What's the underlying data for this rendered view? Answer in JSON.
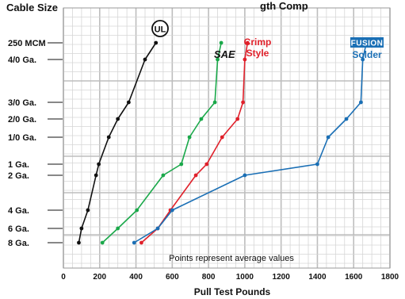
{
  "colors": {
    "ul": "#111111",
    "sae": "#1aa84a",
    "crimp": "#e0202a",
    "solder": "#1a6fb5",
    "grid_minor": "#d6d6d6",
    "grid_major": "#bdbdbd"
  },
  "chart_data": {
    "type": "line",
    "title": "Cable Size",
    "title_suffix": "gth Comp",
    "xlabel": "Pull Test Pounds",
    "ylabel": "Cable Size",
    "xlim": [
      0,
      1800
    ],
    "x_ticks": [
      0,
      200,
      400,
      600,
      800,
      1000,
      1200,
      1400,
      1600,
      1800
    ],
    "x_tick_labels": [
      "0",
      "200",
      "400",
      "600",
      "800",
      "1000",
      "1200",
      "1400",
      "1600",
      "1800"
    ],
    "categories": [
      "8 Ga.",
      "6 Ga.",
      "4 Ga.",
      "2 Ga.",
      "1 Ga.",
      "1/0 Ga.",
      "2/0 Ga.",
      "3/0 Ga.",
      "4/0 Ga.",
      "250 MCM"
    ],
    "grid": true,
    "annotation": "Points represent average values",
    "series": [
      {
        "name": "UL",
        "label_lines": [],
        "values": [
          85,
          100,
          135,
          180,
          195,
          250,
          300,
          360,
          450,
          510
        ]
      },
      {
        "name": "SAE",
        "label_lines": [
          "SAE"
        ],
        "values": [
          215,
          300,
          405,
          550,
          650,
          695,
          760,
          835,
          850,
          870
        ]
      },
      {
        "name": "Crimp Style",
        "label_lines": [
          "Crimp",
          "Style"
        ],
        "values": [
          430,
          520,
          590,
          730,
          790,
          875,
          960,
          990,
          1000,
          1015
        ]
      },
      {
        "name": "Fusion Solder",
        "label_lines": [
          "FUSION",
          "Solder"
        ],
        "values": [
          390,
          520,
          600,
          1000,
          1400,
          1460,
          1560,
          1640,
          1650,
          1670
        ]
      }
    ]
  }
}
